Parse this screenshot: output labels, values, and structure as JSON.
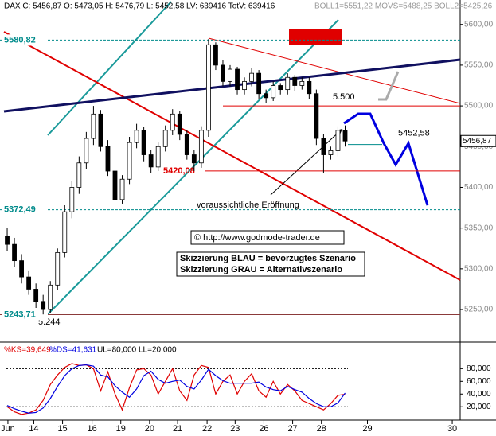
{
  "chart_data": [
    {
      "type": "candlestick",
      "title": "DAX C: 5456,87 O: 5473,05 H: 5476,79 L: 5452,58 LV: 639416 TotV: 639416",
      "subtitle": "BOLL1=5551,22 MOVS=5488,25 BOLL2=5425,26",
      "x": [
        1,
        2,
        3,
        4,
        5,
        6,
        7,
        8,
        9,
        10,
        11,
        12,
        13,
        14,
        15,
        16,
        17,
        18,
        19,
        20,
        21,
        22,
        23,
        24,
        25,
        26,
        27,
        28,
        29,
        30,
        31,
        32,
        33,
        34,
        35,
        36,
        37,
        38,
        39,
        40,
        41,
        42,
        43,
        44,
        45,
        46,
        47,
        48
      ],
      "open": [
        5340,
        5330,
        5310,
        5290,
        5275,
        5260,
        5250,
        5280,
        5320,
        5370,
        5400,
        5430,
        5460,
        5490,
        5450,
        5420,
        5385,
        5410,
        5455,
        5470,
        5440,
        5425,
        5450,
        5470,
        5490,
        5465,
        5440,
        5430,
        5470,
        5575,
        5550,
        5530,
        5545,
        5520,
        5530,
        5540,
        5515,
        5510,
        5525,
        5520,
        5535,
        5525,
        5530,
        5515,
        5460,
        5440,
        5445,
        5470
      ],
      "high": [
        5350,
        5338,
        5318,
        5298,
        5282,
        5268,
        5285,
        5325,
        5378,
        5408,
        5438,
        5468,
        5500,
        5495,
        5458,
        5425,
        5415,
        5462,
        5478,
        5474,
        5446,
        5455,
        5476,
        5496,
        5494,
        5470,
        5446,
        5475,
        5582,
        5578,
        5556,
        5550,
        5548,
        5535,
        5546,
        5544,
        5520,
        5530,
        5528,
        5540,
        5538,
        5535,
        5535,
        5520,
        5465,
        5450,
        5475,
        5476
      ],
      "low": [
        5322,
        5302,
        5282,
        5268,
        5252,
        5244,
        5246,
        5274,
        5314,
        5362,
        5392,
        5422,
        5452,
        5444,
        5414,
        5372,
        5380,
        5404,
        5448,
        5432,
        5418,
        5420,
        5444,
        5464,
        5458,
        5434,
        5420,
        5424,
        5462,
        5544,
        5524,
        5524,
        5514,
        5514,
        5524,
        5508,
        5504,
        5506,
        5514,
        5514,
        5518,
        5520,
        5508,
        5452,
        5418,
        5434,
        5438,
        5450
      ],
      "close": [
        5330,
        5310,
        5290,
        5275,
        5260,
        5250,
        5280,
        5320,
        5370,
        5400,
        5430,
        5460,
        5490,
        5450,
        5420,
        5385,
        5410,
        5455,
        5470,
        5440,
        5425,
        5450,
        5470,
        5490,
        5465,
        5440,
        5430,
        5470,
        5575,
        5550,
        5530,
        5545,
        5520,
        5530,
        5540,
        5515,
        5510,
        5525,
        5520,
        5535,
        5525,
        5530,
        5515,
        5460,
        5440,
        5445,
        5470,
        5456.87
      ],
      "xlim": [
        0,
        64
      ],
      "ylim": [
        5210,
        5630
      ],
      "yticks": [
        {
          "value": 5250,
          "label": "5250,00"
        },
        {
          "value": 5300,
          "label": "5300,00"
        },
        {
          "value": 5350,
          "label": "5350,00"
        },
        {
          "value": 5400,
          "label": "5400,00"
        },
        {
          "value": 5450,
          "label": "5450,00"
        },
        {
          "value": 5500,
          "label": "5500,00"
        },
        {
          "value": 5550,
          "label": "5550,00"
        },
        {
          "value": 5600,
          "label": "5600,00"
        }
      ],
      "last_price": {
        "value": 5456.87,
        "label": "5456,87"
      },
      "levels": [
        {
          "value": 5580.82,
          "label": "5580,82",
          "color": "#008b8b"
        },
        {
          "value": 5372.49,
          "label": "5372,49",
          "color": "#008b8b"
        },
        {
          "value": 5243.71,
          "label": "5243,71",
          "color": "#8b3a3a"
        },
        {
          "value": 5420.08,
          "label": "5420,08",
          "color": "#e00000"
        },
        {
          "value": 5500,
          "label": "5.500",
          "color": "#e00000"
        },
        {
          "value": 5452.58,
          "label": "5452,58",
          "color": "#008b8b"
        }
      ],
      "annotations": [
        "5.244",
        "voraussichtliche Eröffnung",
        "© http://www.godmode-trader.de",
        "Skizzierung BLAU = bevorzugtes Szenario",
        "Skizzierung GRAU = Alternativszenario"
      ]
    },
    {
      "type": "line",
      "subtitle": "UL=80,000 LL=20,000",
      "x": [
        1,
        2,
        3,
        4,
        5,
        6,
        7,
        8,
        9,
        10,
        11,
        12,
        13,
        14,
        15,
        16,
        17,
        18,
        19,
        20,
        21,
        22,
        23,
        24,
        25,
        26,
        27,
        28,
        29,
        30,
        31,
        32,
        33,
        34,
        35,
        36,
        37,
        38,
        39,
        40,
        41,
        42,
        43,
        44,
        45,
        46,
        47,
        48
      ],
      "series": [
        {
          "name": "%KS=39,649",
          "color": "#e00000",
          "values": [
            20,
            12,
            8,
            10,
            15,
            30,
            55,
            70,
            82,
            88,
            85,
            86,
            80,
            45,
            75,
            40,
            15,
            50,
            78,
            80,
            70,
            40,
            60,
            80,
            45,
            30,
            70,
            85,
            82,
            40,
            60,
            70,
            40,
            60,
            72,
            45,
            35,
            60,
            40,
            55,
            45,
            30,
            25,
            20,
            15,
            25,
            38,
            39.649
          ]
        },
        {
          "name": "%DS=41,631",
          "color": "#0000e0",
          "values": [
            22,
            17,
            13,
            10,
            11,
            18,
            33,
            52,
            69,
            80,
            85,
            86,
            84,
            70,
            67,
            53,
            43,
            35,
            48,
            69,
            76,
            63,
            57,
            60,
            62,
            52,
            48,
            62,
            79,
            69,
            61,
            57,
            57,
            57,
            57,
            59,
            51,
            47,
            45,
            52,
            47,
            43,
            33,
            25,
            20,
            20,
            26,
            41.631
          ]
        }
      ],
      "levels": [
        80,
        20
      ],
      "xlim": [
        0,
        64
      ],
      "ylim": [
        -1,
        118
      ],
      "yticks": [
        {
          "value": 20,
          "label": "20,000"
        },
        {
          "value": 40,
          "label": "40,000"
        },
        {
          "value": 60,
          "label": "60,000"
        },
        {
          "value": 80,
          "label": "80,000"
        }
      ],
      "xticks": [
        {
          "value": 1.1,
          "label": "Jun"
        },
        {
          "value": 4.7,
          "label": "14"
        },
        {
          "value": 8.7,
          "label": "15"
        },
        {
          "value": 12.8,
          "label": "16"
        },
        {
          "value": 16.8,
          "label": "19"
        },
        {
          "value": 20.8,
          "label": "20"
        },
        {
          "value": 24.7,
          "label": "21"
        },
        {
          "value": 28.8,
          "label": "22"
        },
        {
          "value": 32.7,
          "label": "23"
        },
        {
          "value": 36.7,
          "label": "26"
        },
        {
          "value": 40.7,
          "label": "27"
        },
        {
          "value": 44.7,
          "label": "28"
        },
        {
          "value": 51.1,
          "label": "29"
        },
        {
          "value": 62.9,
          "label": "30"
        }
      ]
    }
  ]
}
